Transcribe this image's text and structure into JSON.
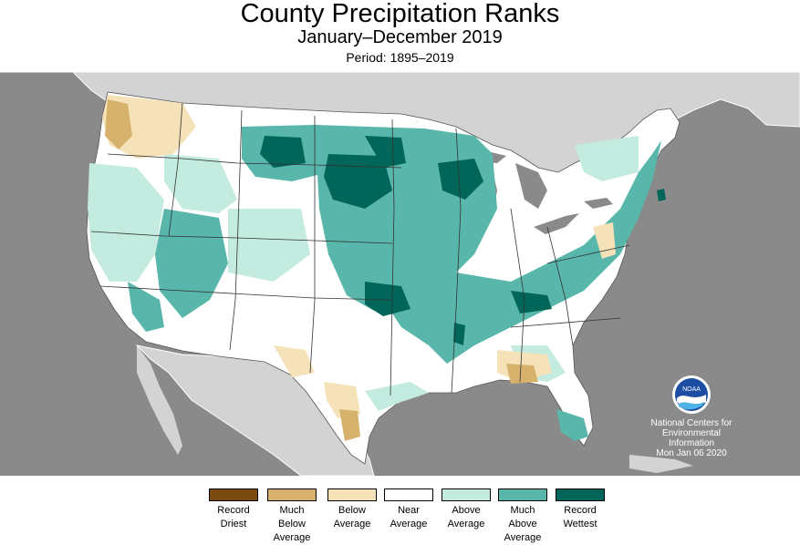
{
  "title": "County Precipitation Ranks",
  "subtitle": "January–December 2019",
  "period": "Period: 1895–2019",
  "noaa": {
    "logo_text": "NOAA",
    "org_line1": "National Centers for",
    "org_line2": "Environmental",
    "org_line3": "Information",
    "date": "Mon Jan 06 2020"
  },
  "colors": {
    "record_driest": "#7b4a0f",
    "much_below": "#d7b26c",
    "below": "#f5e2b8",
    "near": "#ffffff",
    "above": "#c4ebe0",
    "much_above": "#59b6ab",
    "record_wettest": "#00665a",
    "water": "#8a8a8a",
    "land_outside": "#d3d3d3"
  },
  "legend": [
    {
      "line1": "Record",
      "line2": "Driest",
      "line3": "",
      "color": "#7b4a0f"
    },
    {
      "line1": "Much",
      "line2": "Below",
      "line3": "Average",
      "color": "#d7b26c"
    },
    {
      "line1": "Below",
      "line2": "Average",
      "line3": "",
      "color": "#f5e2b8"
    },
    {
      "line1": "Near",
      "line2": "Average",
      "line3": "",
      "color": "#ffffff"
    },
    {
      "line1": "Above",
      "line2": "Average",
      "line3": "",
      "color": "#c4ebe0"
    },
    {
      "line1": "Much",
      "line2": "Above",
      "line3": "Average",
      "color": "#59b6ab"
    },
    {
      "line1": "Record",
      "line2": "Wettest",
      "line3": "",
      "color": "#00665a"
    }
  ]
}
